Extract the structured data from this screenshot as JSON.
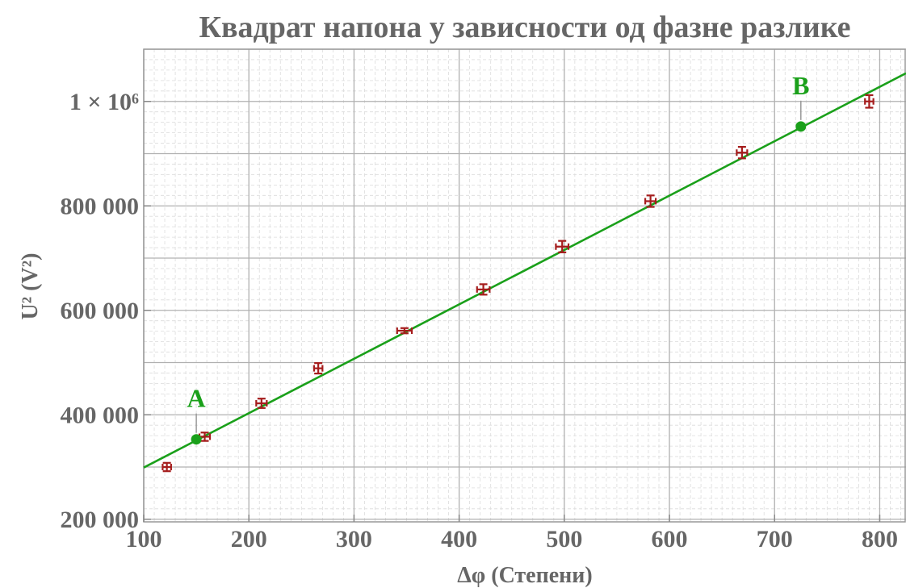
{
  "chart_data": {
    "type": "scatter",
    "title": "Квадрат напона у зависности од фазне разлике",
    "xlabel": "Δφ (Степени)",
    "ylabel": "U² (V²)",
    "xlim": [
      100,
      825
    ],
    "ylim": [
      195000,
      1100000
    ],
    "x_ticks": [
      100,
      200,
      300,
      400,
      500,
      600,
      700,
      800
    ],
    "y_ticks": [
      200000,
      400000,
      600000,
      800000,
      1000000
    ],
    "y_tick_labels": [
      "200 000",
      "400 000",
      "600 000",
      "800 000",
      "1 × 10⁶"
    ],
    "x_tick_labels": [
      "100",
      "200",
      "300",
      "400",
      "500",
      "600",
      "700",
      "800"
    ],
    "grid": true,
    "series": [
      {
        "kind": "data-with-error-bars",
        "color": "#a51c1c",
        "points": [
          {
            "x": 122,
            "y": 300000,
            "xerr": 4,
            "yerr": 8000
          },
          {
            "x": 158,
            "y": 358000,
            "xerr": 5,
            "yerr": 8000
          },
          {
            "x": 212,
            "y": 422000,
            "xerr": 5,
            "yerr": 9000
          },
          {
            "x": 266,
            "y": 489000,
            "xerr": 4,
            "yerr": 10000
          },
          {
            "x": 348,
            "y": 561000,
            "xerr": 7,
            "yerr": 5000
          },
          {
            "x": 423,
            "y": 640000,
            "xerr": 6,
            "yerr": 10000
          },
          {
            "x": 498,
            "y": 722000,
            "xerr": 6,
            "yerr": 11000
          },
          {
            "x": 582,
            "y": 809000,
            "xerr": 5,
            "yerr": 11000
          },
          {
            "x": 669,
            "y": 902000,
            "xerr": 5,
            "yerr": 11000
          },
          {
            "x": 790,
            "y": 1000000,
            "xerr": 4,
            "yerr": 12000
          }
        ]
      },
      {
        "kind": "fit-line",
        "color": "#1aa01a",
        "x": [
          100,
          825
        ],
        "y": [
          299000,
          1054000
        ]
      }
    ],
    "annotations": [
      {
        "label": "A",
        "x": 150,
        "y": 353000,
        "color": "#1aa01a"
      },
      {
        "label": "B",
        "x": 725,
        "y": 952000,
        "color": "#1aa01a"
      }
    ]
  }
}
